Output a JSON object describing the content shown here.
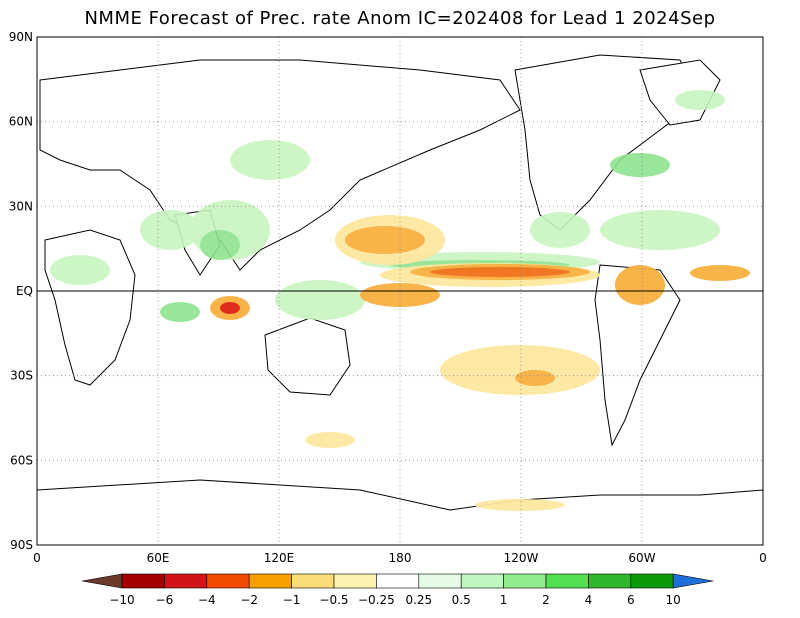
{
  "title": "NMME Forecast of Prec. rate Anom IC=202408 for Lead 1 2024Sep",
  "lat_labels": [
    {
      "text": "90N",
      "lat": 90
    },
    {
      "text": "60N",
      "lat": 60
    },
    {
      "text": "30N",
      "lat": 30
    },
    {
      "text": "EQ",
      "lat": 0
    },
    {
      "text": "30S",
      "lat": -30
    },
    {
      "text": "60S",
      "lat": -60
    },
    {
      "text": "90S",
      "lat": -90
    }
  ],
  "lon_labels": [
    {
      "text": "0",
      "lon": 0
    },
    {
      "text": "60E",
      "lon": 60
    },
    {
      "text": "120E",
      "lon": 120
    },
    {
      "text": "180",
      "lon": 180
    },
    {
      "text": "120W",
      "lon": 240
    },
    {
      "text": "60W",
      "lon": 300
    },
    {
      "text": "0",
      "lon": 360
    }
  ],
  "colorbar": {
    "colors": [
      "#6b3a2a",
      "#a50000",
      "#d0141a",
      "#f24a00",
      "#f7a000",
      "#fbdc76",
      "#fdf3b0",
      "#ffffff",
      "#e6fbe6",
      "#c0f7c0",
      "#8fec8f",
      "#52e052",
      "#2fb82f",
      "#0a9a0a",
      "#1e6fd8"
    ],
    "labels": [
      "−10",
      "−6",
      "−4",
      "−2",
      "−1",
      "−0.5",
      "−0.25",
      "0.25",
      "0.5",
      "1",
      "2",
      "4",
      "6",
      "10"
    ]
  },
  "colors": {
    "wet_light": "#c8f5c0",
    "wet_mid": "#8fe38f",
    "dry_light": "#fde7a0",
    "dry_mid": "#f8b040",
    "dry_strong": "#f2701a",
    "dry_max": "#e02010"
  }
}
